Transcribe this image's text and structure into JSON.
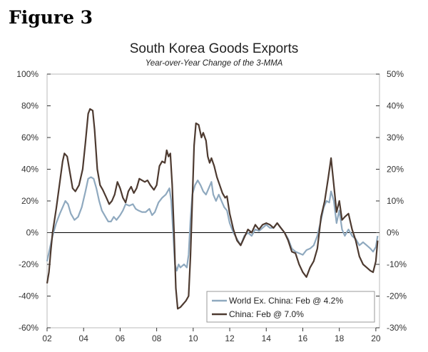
{
  "figure_label": "Figure 3",
  "chart_data": {
    "type": "line",
    "title": "South Korea Goods Exports",
    "subtitle": "Year-over-Year Change of the 3-MMA",
    "xlim": [
      2002,
      2020.2
    ],
    "x_ticks": [
      2002,
      2004,
      2006,
      2008,
      2010,
      2012,
      2014,
      2016,
      2018,
      2020
    ],
    "x_tick_labels": [
      "02",
      "04",
      "06",
      "08",
      "10",
      "12",
      "14",
      "16",
      "18",
      "20"
    ],
    "y_left": {
      "lim": [
        -60,
        100
      ],
      "ticks": [
        -60,
        -40,
        -20,
        0,
        20,
        40,
        60,
        80,
        100
      ],
      "tick_labels": [
        "-60%",
        "-40%",
        "-20%",
        "0%",
        "20%",
        "40%",
        "60%",
        "80%",
        "100%"
      ]
    },
    "y_right": {
      "lim": [
        -30,
        50
      ],
      "ticks": [
        -30,
        -20,
        -10,
        0,
        10,
        20,
        30,
        40,
        50
      ],
      "tick_labels": [
        "-30%",
        "-20%",
        "-10%",
        "0%",
        "10%",
        "20%",
        "30%",
        "40%",
        "50%"
      ]
    },
    "legend_position": "bottom-right",
    "series": [
      {
        "name": "World Ex. China: Feb @ 4.2%",
        "axis": "right",
        "color": "#8fa9bf",
        "points": [
          [
            2002.0,
            -9
          ],
          [
            2002.15,
            -5
          ],
          [
            2002.3,
            -1
          ],
          [
            2002.5,
            3
          ],
          [
            2002.7,
            6
          ],
          [
            2002.85,
            8
          ],
          [
            2003.0,
            10
          ],
          [
            2003.15,
            9
          ],
          [
            2003.3,
            6
          ],
          [
            2003.5,
            4
          ],
          [
            2003.7,
            5
          ],
          [
            2003.9,
            8
          ],
          [
            2004.1,
            13
          ],
          [
            2004.25,
            17
          ],
          [
            2004.4,
            17.5
          ],
          [
            2004.55,
            17
          ],
          [
            2004.7,
            14
          ],
          [
            2004.85,
            10
          ],
          [
            2005.0,
            7
          ],
          [
            2005.2,
            5
          ],
          [
            2005.35,
            3.5
          ],
          [
            2005.5,
            3.5
          ],
          [
            2005.65,
            5
          ],
          [
            2005.8,
            4
          ],
          [
            2006.0,
            5.5
          ],
          [
            2006.15,
            7
          ],
          [
            2006.3,
            9
          ],
          [
            2006.5,
            8.5
          ],
          [
            2006.7,
            9
          ],
          [
            2006.85,
            7.5
          ],
          [
            2007.0,
            7
          ],
          [
            2007.2,
            6.5
          ],
          [
            2007.4,
            6.5
          ],
          [
            2007.6,
            7.5
          ],
          [
            2007.75,
            5.5
          ],
          [
            2007.9,
            6.5
          ],
          [
            2008.1,
            9.5
          ],
          [
            2008.3,
            11
          ],
          [
            2008.5,
            12
          ],
          [
            2008.6,
            13
          ],
          [
            2008.7,
            14
          ],
          [
            2008.8,
            10
          ],
          [
            2008.9,
            0
          ],
          [
            2009.0,
            -10
          ],
          [
            2009.1,
            -12
          ],
          [
            2009.2,
            -10
          ],
          [
            2009.3,
            -11
          ],
          [
            2009.5,
            -10
          ],
          [
            2009.65,
            -11
          ],
          [
            2009.75,
            -7
          ],
          [
            2009.85,
            4
          ],
          [
            2009.95,
            12
          ],
          [
            2010.1,
            15
          ],
          [
            2010.25,
            16.5
          ],
          [
            2010.4,
            15
          ],
          [
            2010.55,
            13
          ],
          [
            2010.7,
            12
          ],
          [
            2010.85,
            14
          ],
          [
            2011.0,
            16
          ],
          [
            2011.1,
            12
          ],
          [
            2011.25,
            10
          ],
          [
            2011.4,
            12
          ],
          [
            2011.55,
            10
          ],
          [
            2011.7,
            8
          ],
          [
            2011.85,
            7
          ],
          [
            2012.0,
            3
          ],
          [
            2012.2,
            0
          ],
          [
            2012.4,
            -2
          ],
          [
            2012.6,
            -4
          ],
          [
            2012.8,
            -1
          ],
          [
            2013.0,
            0
          ],
          [
            2013.2,
            -1
          ],
          [
            2013.4,
            1
          ],
          [
            2013.6,
            0.5
          ],
          [
            2013.8,
            1.5
          ],
          [
            2014.0,
            2.5
          ],
          [
            2014.2,
            1.5
          ],
          [
            2014.4,
            1.5
          ],
          [
            2014.6,
            3
          ],
          [
            2014.8,
            1.5
          ],
          [
            2015.0,
            0
          ],
          [
            2015.2,
            -2
          ],
          [
            2015.4,
            -5
          ],
          [
            2015.6,
            -6
          ],
          [
            2015.8,
            -6.5
          ],
          [
            2016.0,
            -7
          ],
          [
            2016.2,
            -5.5
          ],
          [
            2016.4,
            -5
          ],
          [
            2016.6,
            -4
          ],
          [
            2016.8,
            -1
          ],
          [
            2017.0,
            4
          ],
          [
            2017.15,
            8
          ],
          [
            2017.3,
            10
          ],
          [
            2017.45,
            9.5
          ],
          [
            2017.55,
            13
          ],
          [
            2017.7,
            10
          ],
          [
            2017.85,
            3
          ],
          [
            2018.0,
            7
          ],
          [
            2018.15,
            1
          ],
          [
            2018.3,
            -1
          ],
          [
            2018.5,
            1
          ],
          [
            2018.7,
            -1
          ],
          [
            2018.9,
            -2
          ],
          [
            2019.1,
            -4
          ],
          [
            2019.3,
            -3
          ],
          [
            2019.5,
            -4
          ],
          [
            2019.7,
            -5
          ],
          [
            2019.85,
            -6
          ],
          [
            2020.0,
            -4.5
          ],
          [
            2020.1,
            -1
          ]
        ]
      },
      {
        "name": "China: Feb @ 7.0%",
        "axis": "left",
        "color": "#4d3a30",
        "points": [
          [
            2002.0,
            -32
          ],
          [
            2002.1,
            -25
          ],
          [
            2002.2,
            -12
          ],
          [
            2002.3,
            0
          ],
          [
            2002.5,
            15
          ],
          [
            2002.7,
            32
          ],
          [
            2002.85,
            45
          ],
          [
            2002.95,
            50
          ],
          [
            2003.1,
            48
          ],
          [
            2003.25,
            38
          ],
          [
            2003.4,
            28
          ],
          [
            2003.55,
            26
          ],
          [
            2003.75,
            30
          ],
          [
            2003.95,
            40
          ],
          [
            2004.1,
            57
          ],
          [
            2004.25,
            75
          ],
          [
            2004.35,
            78
          ],
          [
            2004.5,
            77
          ],
          [
            2004.6,
            65
          ],
          [
            2004.75,
            40
          ],
          [
            2004.9,
            30
          ],
          [
            2005.05,
            27
          ],
          [
            2005.25,
            22
          ],
          [
            2005.4,
            18
          ],
          [
            2005.55,
            20
          ],
          [
            2005.7,
            24
          ],
          [
            2005.85,
            32
          ],
          [
            2006.0,
            28
          ],
          [
            2006.15,
            22
          ],
          [
            2006.3,
            19
          ],
          [
            2006.45,
            26
          ],
          [
            2006.6,
            29
          ],
          [
            2006.75,
            25
          ],
          [
            2006.9,
            28
          ],
          [
            2007.05,
            34
          ],
          [
            2007.2,
            33
          ],
          [
            2007.35,
            32
          ],
          [
            2007.5,
            33
          ],
          [
            2007.65,
            30
          ],
          [
            2007.85,
            27
          ],
          [
            2008.0,
            30
          ],
          [
            2008.15,
            42
          ],
          [
            2008.3,
            45
          ],
          [
            2008.45,
            44
          ],
          [
            2008.55,
            52
          ],
          [
            2008.65,
            48
          ],
          [
            2008.75,
            50
          ],
          [
            2008.85,
            30
          ],
          [
            2008.95,
            0
          ],
          [
            2009.05,
            -35
          ],
          [
            2009.15,
            -48
          ],
          [
            2009.3,
            -47
          ],
          [
            2009.45,
            -45
          ],
          [
            2009.6,
            -43
          ],
          [
            2009.75,
            -40
          ],
          [
            2009.85,
            -15
          ],
          [
            2009.95,
            20
          ],
          [
            2010.05,
            55
          ],
          [
            2010.15,
            69
          ],
          [
            2010.3,
            68
          ],
          [
            2010.45,
            60
          ],
          [
            2010.55,
            63
          ],
          [
            2010.7,
            58
          ],
          [
            2010.8,
            48
          ],
          [
            2010.9,
            44
          ],
          [
            2011.0,
            47
          ],
          [
            2011.15,
            42
          ],
          [
            2011.3,
            35
          ],
          [
            2011.45,
            30
          ],
          [
            2011.6,
            25
          ],
          [
            2011.75,
            22
          ],
          [
            2011.85,
            23
          ],
          [
            2012.0,
            12
          ],
          [
            2012.2,
            2
          ],
          [
            2012.4,
            -5
          ],
          [
            2012.6,
            -8
          ],
          [
            2012.8,
            -3
          ],
          [
            2013.0,
            2
          ],
          [
            2013.2,
            0
          ],
          [
            2013.4,
            5
          ],
          [
            2013.6,
            2
          ],
          [
            2013.8,
            5
          ],
          [
            2014.0,
            6
          ],
          [
            2014.2,
            5
          ],
          [
            2014.4,
            3
          ],
          [
            2014.6,
            6
          ],
          [
            2014.8,
            3
          ],
          [
            2015.0,
            0
          ],
          [
            2015.2,
            -5
          ],
          [
            2015.4,
            -12
          ],
          [
            2015.6,
            -13
          ],
          [
            2015.8,
            -20
          ],
          [
            2016.0,
            -25
          ],
          [
            2016.2,
            -28
          ],
          [
            2016.4,
            -22
          ],
          [
            2016.6,
            -18
          ],
          [
            2016.8,
            -10
          ],
          [
            2017.0,
            10
          ],
          [
            2017.2,
            20
          ],
          [
            2017.4,
            35
          ],
          [
            2017.55,
            47
          ],
          [
            2017.7,
            30
          ],
          [
            2017.85,
            13
          ],
          [
            2018.0,
            20
          ],
          [
            2018.15,
            8
          ],
          [
            2018.3,
            10
          ],
          [
            2018.5,
            12
          ],
          [
            2018.7,
            2
          ],
          [
            2018.9,
            -5
          ],
          [
            2019.1,
            -15
          ],
          [
            2019.3,
            -20
          ],
          [
            2019.5,
            -22
          ],
          [
            2019.7,
            -24
          ],
          [
            2019.85,
            -25
          ],
          [
            2020.0,
            -18
          ],
          [
            2020.1,
            -5
          ]
        ]
      }
    ]
  }
}
